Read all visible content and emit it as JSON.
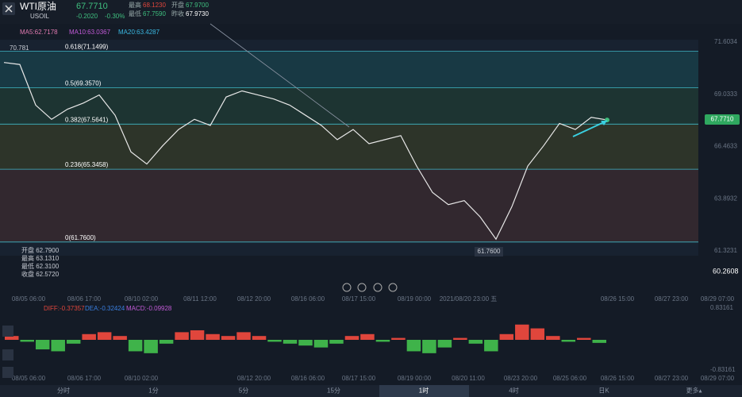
{
  "header": {
    "symbol": "WTI原油",
    "code": "USOIL",
    "price": "67.7710",
    "change": "-0.2020",
    "change_pct": "-0.30%",
    "stats": [
      [
        "最高",
        "68.1230"
      ],
      [
        "最低",
        "67.7590"
      ],
      [
        "开盘",
        "67.9700"
      ],
      [
        "昨收",
        "67.9730"
      ]
    ]
  },
  "ma_legend": [
    "MA5:62.7178",
    "MA10:63.0367",
    "MA20:63.4287"
  ],
  "ohlc_box": [
    "开盘 62.7900",
    "最高 63.1310",
    "最低 62.3100",
    "收盘 62.5720"
  ],
  "corner_price": "60.2608",
  "start_price": "70.781",
  "current_price_tag": "67.7710",
  "low_tag": "61.7600",
  "time_axis": [
    "08/05 06:00",
    "08/06 17:00",
    "08/10 02:00",
    "08/11 12:00",
    "08/12 20:00",
    "08/16 06:00",
    "08/17 15:00",
    "08/19 00:00",
    "2021/08/20 23:00 五",
    "08/26 15:00",
    "08/27 23:00",
    "08/29 07:00"
  ],
  "macd_legend": [
    "DIFF:-0.37357",
    "DEA:-0.32424",
    "MACD:-0.09928"
  ],
  "macd_time_axis": [
    "08/05 06:00",
    "08/06 17:00",
    "08/10 02:00",
    "08/12 20:00",
    "08/16 06:00",
    "08/17 15:00",
    "08/19 00:00",
    "08/20 11:00",
    "08/23 20:00",
    "08/25 06:00",
    "08/26 15:00",
    "08/27 23:00",
    "08/29 07:00"
  ],
  "tabs": [
    "分时",
    "1分",
    "5分",
    "15分",
    "1时",
    "4时",
    "日K",
    "更多▴"
  ],
  "chart_data": [
    {
      "type": "line",
      "ylim": [
        61.3231,
        71.6034
      ],
      "yticks": [
        61.3231,
        63.8932,
        66.4633,
        69.0333,
        71.6034
      ],
      "fib_levels": [
        {
          "value": 71.1499,
          "label": "0.618(71.1499)"
        },
        {
          "value": 69.357,
          "label": "0.5(69.3570)"
        },
        {
          "value": 67.5641,
          "label": "0.382(67.5641)"
        },
        {
          "value": 65.3458,
          "label": "0.236(65.3458)"
        },
        {
          "value": 61.76,
          "label": "0(61.7600)"
        }
      ],
      "series": [
        {
          "color": "#e8e8e8",
          "values": [
            70.6,
            70.5,
            68.5,
            67.8,
            68.3,
            68.6,
            69.0,
            68.0,
            66.2,
            65.6,
            66.5,
            67.3,
            67.8,
            67.5,
            68.9,
            69.2,
            69.0,
            68.8,
            68.5,
            68.0,
            67.5,
            66.8,
            67.3,
            66.6,
            66.8,
            67.0,
            65.5,
            64.2,
            63.6,
            63.8,
            63.0,
            61.9,
            63.5,
            65.5,
            66.5,
            67.6,
            67.3,
            67.9,
            67.77
          ]
        }
      ]
    },
    {
      "type": "bar",
      "ylim": [
        -0.83161,
        0.83161
      ],
      "yticks": [
        -0.83161,
        0.83161
      ],
      "values": [
        0.1,
        -0.05,
        -0.25,
        -0.3,
        -0.1,
        0.15,
        0.2,
        0.1,
        -0.3,
        -0.35,
        -0.1,
        0.2,
        0.25,
        0.15,
        0.1,
        0.2,
        0.1,
        -0.05,
        -0.1,
        -0.15,
        -0.2,
        -0.1,
        0.1,
        0.15,
        -0.05,
        0.05,
        -0.3,
        -0.35,
        -0.2,
        0.05,
        -0.1,
        -0.3,
        0.15,
        0.4,
        0.3,
        0.1,
        -0.05,
        0.05,
        -0.08
      ],
      "colors": {
        "up": "#e0463c",
        "down": "#3fb34a"
      }
    }
  ]
}
